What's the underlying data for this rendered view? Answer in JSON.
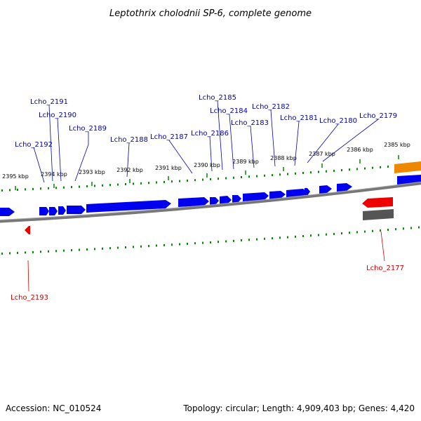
{
  "title": "Leptothrix cholodnii SP-6, complete genome",
  "accession": "Accession: NC_010524",
  "summary": "Topology: circular; Length: 4,909,403 bp; Genes: 4,420",
  "colors": {
    "forward": "#0000ee",
    "reverse": "#ee0000",
    "rna": "#ee8800",
    "pseudo": "#555555",
    "tick": "#008800",
    "backbone": "#777777",
    "forward_label": "#0000aa",
    "reverse_label": "#cc0000"
  },
  "ticks": [
    "2395 kbp",
    "2394 kbp",
    "2393 kbp",
    "2392 kbp",
    "2391 kbp",
    "2390 kbp",
    "2389 kbp",
    "2388 kbp",
    "2387 kbp",
    "2386 kbp",
    "2385 kbp"
  ],
  "genes_forward": [
    "Lcho_2192",
    "Lcho_2191",
    "Lcho_2190",
    "Lcho_2189",
    "Lcho_2188",
    "Lcho_2187",
    "Lcho_2186",
    "Lcho_2185",
    "Lcho_2184",
    "Lcho_2183",
    "Lcho_2182",
    "Lcho_2181",
    "Lcho_2180",
    "Lcho_2179"
  ],
  "genes_reverse": [
    "Lcho_2193",
    "Lcho_2177"
  ]
}
